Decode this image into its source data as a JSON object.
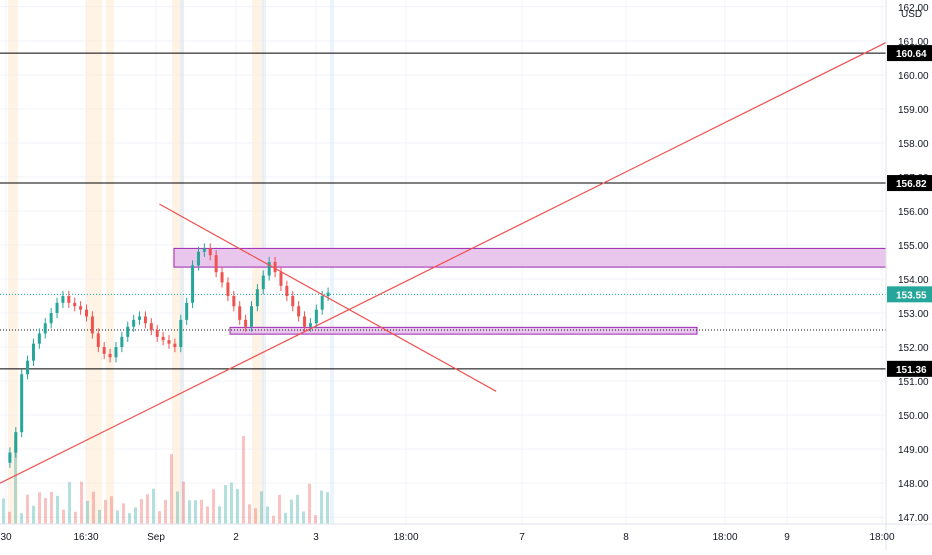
{
  "currency_label": "USD",
  "colors": {
    "background": "#ffffff",
    "grid": "#f0f3fa",
    "up": "#26a69a",
    "down": "#ef5350",
    "trendline": "#f0504f",
    "zone_fill": "#e9c6ec",
    "zone_stroke": "#9c27b0",
    "level_line": "#000000",
    "price_line": "#26a69a",
    "axis_text": "#131722",
    "session_orange": "#ffe9cf",
    "session_blue": "#dbe9fb"
  },
  "chart_data": {
    "type": "candlestick",
    "y_axis": {
      "min": 146.8,
      "max": 162.2,
      "tick_labels": [
        "147.00",
        "148.00",
        "149.00",
        "150.00",
        "151.00",
        "152.00",
        "153.00",
        "154.00",
        "155.00",
        "156.00",
        "157.00",
        "158.00",
        "159.00",
        "160.00",
        "161.00",
        "162.00"
      ]
    },
    "x_axis": {
      "tick_labels": [
        "30",
        "16:30",
        "Sep",
        "2",
        "3",
        "18:00",
        "7",
        "8",
        "18:00",
        "9",
        "18:00"
      ]
    },
    "horizontal_levels": [
      {
        "price": 160.64,
        "label": "160.64"
      },
      {
        "price": 156.82,
        "label": "156.82"
      },
      {
        "price": 151.36,
        "label": "151.36"
      }
    ],
    "last_price": {
      "price": 153.55,
      "label": "153.55"
    },
    "dotted_level": 152.5,
    "zones": [
      {
        "top": 154.9,
        "bottom": 154.35
      },
      {
        "top": 152.58,
        "bottom": 152.38
      }
    ],
    "trendlines": [
      {
        "from": [
          0,
          148.0
        ],
        "to": [
          1.0,
          160.95
        ]
      },
      {
        "from": [
          0.18,
          156.2
        ],
        "to": [
          0.56,
          150.7
        ]
      }
    ],
    "candles_summary": [
      148.6,
      148.9,
      149.5,
      151.2,
      151.6,
      152.1,
      152.4,
      152.7,
      153.0,
      153.3,
      153.5,
      153.3,
      153.2,
      153.1,
      152.9,
      152.4,
      152.0,
      151.8,
      151.7,
      152.0,
      152.3,
      152.6,
      152.8,
      152.9,
      152.7,
      152.5,
      152.3,
      152.2,
      152.1,
      152.0,
      152.8,
      153.3,
      154.4,
      154.8,
      154.9,
      154.7,
      154.2,
      153.9,
      153.5,
      153.2,
      152.8,
      152.6,
      153.2,
      153.7,
      154.1,
      154.5,
      154.2,
      153.8,
      153.5,
      153.2,
      152.9,
      152.6,
      152.7,
      153.1,
      153.5,
      153.6
    ]
  }
}
